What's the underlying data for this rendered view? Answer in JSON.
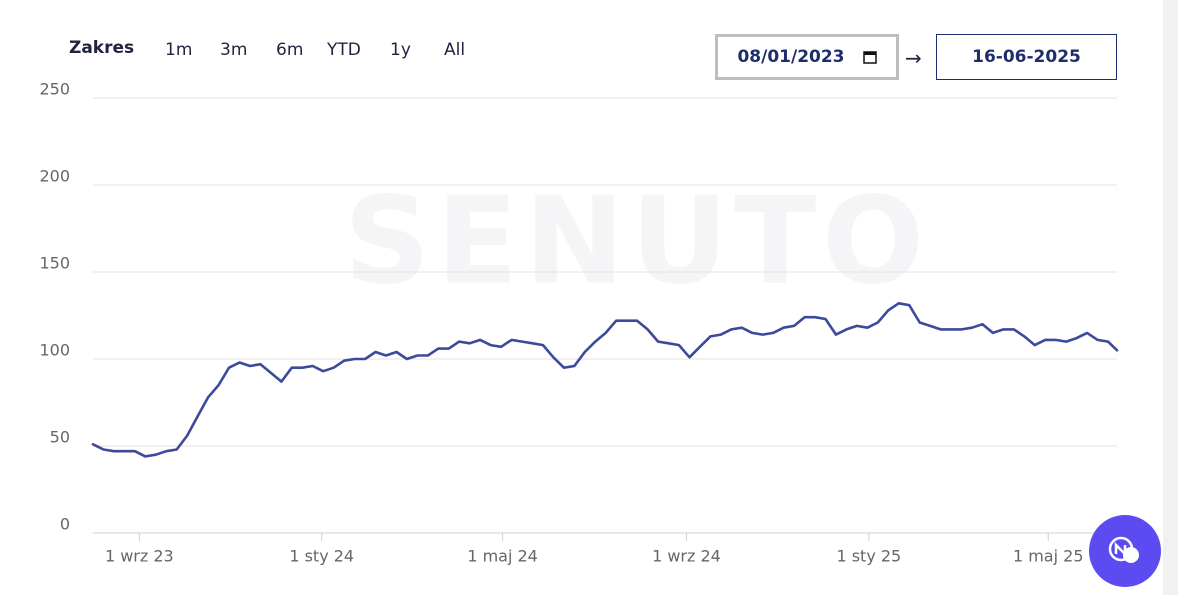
{
  "range_selector": {
    "label": "Zakres",
    "options": [
      "1m",
      "3m",
      "6m",
      "YTD",
      "1y",
      "All"
    ]
  },
  "date_range": {
    "start": "08/01/2023",
    "separator": "→",
    "end": "16-06-2025"
  },
  "watermark": "SENUTO",
  "chart_data": {
    "type": "line",
    "color": "#3b4a9b",
    "grid": true,
    "ylim": [
      0,
      250
    ],
    "yticks": [
      0,
      50,
      100,
      150,
      200,
      250
    ],
    "xlim": [
      "2023-08-01",
      "2025-06-16"
    ],
    "xticks": [
      {
        "value": "2023-09-01",
        "label": "1 wrz 23"
      },
      {
        "value": "2024-01-01",
        "label": "1 sty 24"
      },
      {
        "value": "2024-05-01",
        "label": "1 maj 24"
      },
      {
        "value": "2024-09-01",
        "label": "1 wrz 24"
      },
      {
        "value": "2025-01-01",
        "label": "1 sty 25"
      },
      {
        "value": "2025-05-01",
        "label": "1 maj 25"
      }
    ],
    "x": [
      "2023-08-01",
      "2023-08-08",
      "2023-08-15",
      "2023-08-22",
      "2023-08-29",
      "2023-09-05",
      "2023-09-12",
      "2023-09-19",
      "2023-09-26",
      "2023-10-03",
      "2023-10-10",
      "2023-10-17",
      "2023-10-24",
      "2023-10-31",
      "2023-11-07",
      "2023-11-14",
      "2023-11-21",
      "2023-11-28",
      "2023-12-05",
      "2023-12-12",
      "2023-12-19",
      "2023-12-26",
      "2024-01-02",
      "2024-01-09",
      "2024-01-16",
      "2024-01-23",
      "2024-01-30",
      "2024-02-06",
      "2024-02-13",
      "2024-02-20",
      "2024-02-27",
      "2024-03-05",
      "2024-03-12",
      "2024-03-19",
      "2024-03-26",
      "2024-04-02",
      "2024-04-09",
      "2024-04-16",
      "2024-04-23",
      "2024-04-30",
      "2024-05-07",
      "2024-05-14",
      "2024-05-21",
      "2024-05-28",
      "2024-06-04",
      "2024-06-11",
      "2024-06-18",
      "2024-06-25",
      "2024-07-02",
      "2024-07-09",
      "2024-07-16",
      "2024-07-23",
      "2024-07-30",
      "2024-08-06",
      "2024-08-13",
      "2024-08-20",
      "2024-08-27",
      "2024-09-03",
      "2024-09-10",
      "2024-09-17",
      "2024-09-24",
      "2024-10-01",
      "2024-10-08",
      "2024-10-15",
      "2024-10-22",
      "2024-10-29",
      "2024-11-05",
      "2024-11-12",
      "2024-11-19",
      "2024-11-26",
      "2024-12-03",
      "2024-12-10",
      "2024-12-17",
      "2024-12-24",
      "2024-12-31",
      "2025-01-07",
      "2025-01-14",
      "2025-01-21",
      "2025-01-28",
      "2025-02-04",
      "2025-02-11",
      "2025-02-18",
      "2025-02-25",
      "2025-03-04",
      "2025-03-11",
      "2025-03-18",
      "2025-03-25",
      "2025-04-01",
      "2025-04-08",
      "2025-04-15",
      "2025-04-22",
      "2025-04-29",
      "2025-05-06",
      "2025-05-13",
      "2025-05-20",
      "2025-05-27",
      "2025-06-03",
      "2025-06-10",
      "2025-06-16"
    ],
    "values": [
      51,
      48,
      47,
      47,
      47,
      44,
      45,
      47,
      48,
      56,
      67,
      78,
      85,
      95,
      98,
      96,
      97,
      92,
      87,
      95,
      95,
      96,
      93,
      95,
      99,
      100,
      100,
      104,
      102,
      104,
      100,
      102,
      102,
      106,
      106,
      110,
      109,
      111,
      108,
      107,
      111,
      110,
      109,
      108,
      101,
      95,
      96,
      104,
      110,
      115,
      122,
      122,
      122,
      117,
      110,
      109,
      108,
      101,
      107,
      113,
      114,
      117,
      118,
      115,
      114,
      115,
      118,
      119,
      124,
      124,
      123,
      114,
      117,
      119,
      118,
      121,
      128,
      132,
      131,
      121,
      119,
      117,
      117,
      117,
      118,
      120,
      115,
      117,
      117,
      113,
      108,
      111,
      111,
      110,
      112,
      115,
      111,
      110,
      105
    ]
  }
}
